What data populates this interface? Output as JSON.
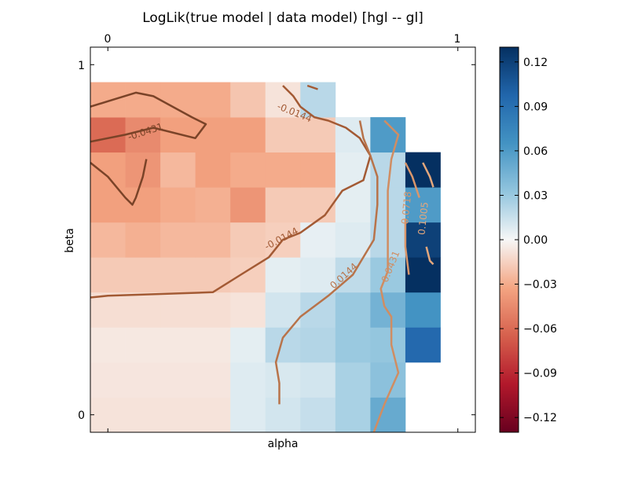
{
  "chart_data": {
    "type": "heatmap",
    "title": "LogLik(true model | data model) [hgl -- gl]",
    "xlabel": "alpha",
    "ylabel": "beta",
    "x_ticks": [
      "0",
      "1"
    ],
    "y_ticks": [
      "1",
      "0"
    ],
    "colorbar": {
      "ticks": [
        "0.12",
        "0.09",
        "0.06",
        "0.03",
        "0.00",
        "−0.03",
        "−0.06",
        "−0.09",
        "−0.12"
      ],
      "tick_values": [
        0.12,
        0.09,
        0.06,
        0.03,
        0.0,
        -0.03,
        -0.06,
        -0.09,
        -0.12
      ],
      "range": [
        -0.13,
        0.13
      ],
      "colormap": "RdBu"
    },
    "alpha_range": [
      -0.05,
      1.05
    ],
    "beta_range": [
      -0.05,
      1.05
    ],
    "grid_step": 0.1,
    "grid_start": 0.0,
    "rows": [
      [
        -0.008,
        -0.008,
        -0.008,
        -0.008,
        0.008,
        0.012,
        0.016,
        0.025,
        0.05,
        null
      ],
      [
        -0.007,
        -0.007,
        -0.007,
        -0.007,
        0.008,
        0.01,
        0.012,
        0.025,
        0.035,
        null
      ],
      [
        -0.006,
        -0.006,
        -0.006,
        -0.006,
        0.006,
        0.02,
        0.022,
        0.03,
        0.032,
        0.095
      ],
      [
        -0.01,
        -0.01,
        -0.01,
        -0.01,
        -0.008,
        0.012,
        0.02,
        0.03,
        0.045,
        0.065
      ],
      [
        -0.018,
        -0.018,
        -0.018,
        -0.018,
        -0.016,
        0.006,
        0.008,
        0.018,
        0.03,
        0.13
      ],
      [
        -0.025,
        -0.028,
        -0.025,
        -0.025,
        -0.018,
        -0.016,
        0.005,
        0.008,
        0.02,
        0.12
      ],
      [
        -0.035,
        -0.035,
        -0.03,
        -0.028,
        -0.04,
        -0.018,
        -0.018,
        0.006,
        0.02,
        0.06
      ],
      [
        -0.035,
        -0.04,
        -0.025,
        -0.035,
        -0.03,
        -0.03,
        -0.03,
        0.006,
        0.02,
        0.13
      ],
      [
        -0.06,
        -0.045,
        -0.035,
        -0.035,
        -0.035,
        -0.018,
        -0.018,
        0.008,
        0.06,
        null
      ],
      [
        -0.03,
        -0.03,
        -0.03,
        -0.03,
        -0.02,
        -0.008,
        0.02,
        null,
        null,
        null
      ]
    ],
    "contours": [
      {
        "level": -0.0431,
        "label": "-0.0431",
        "color": "#7a4328",
        "segments": [
          [
            [
              -0.05,
              0.88
            ],
            [
              0.08,
              0.92
            ],
            [
              0.13,
              0.91
            ],
            [
              0.24,
              0.85
            ],
            [
              0.28,
              0.83
            ],
            [
              0.25,
              0.79
            ],
            [
              0.13,
              0.82
            ],
            [
              0.05,
              0.8
            ],
            [
              -0.05,
              0.78
            ]
          ],
          [
            [
              -0.05,
              0.72
            ],
            [
              0.0,
              0.68
            ],
            [
              0.05,
              0.62
            ],
            [
              0.07,
              0.6
            ],
            [
              0.08,
              0.62
            ],
            [
              0.1,
              0.68
            ],
            [
              0.11,
              0.73
            ]
          ]
        ],
        "label_pos": [
          0.11,
          0.8
        ]
      },
      {
        "level": -0.0144,
        "label": "-0.0144",
        "color": "#a35a34",
        "segments": [
          [
            [
              0.5,
              0.94
            ],
            [
              0.53,
              0.91
            ],
            [
              0.55,
              0.88
            ],
            [
              0.59,
              0.85
            ],
            [
              0.63,
              0.84
            ],
            [
              0.68,
              0.82
            ],
            [
              0.72,
              0.79
            ],
            [
              0.75,
              0.74
            ],
            [
              0.73,
              0.67
            ],
            [
              0.67,
              0.64
            ],
            [
              0.62,
              0.57
            ],
            [
              0.55,
              0.52
            ],
            [
              0.5,
              0.5
            ],
            [
              0.46,
              0.45
            ],
            [
              0.38,
              0.4
            ],
            [
              0.3,
              0.35
            ],
            [
              0.0,
              0.34
            ],
            [
              -0.05,
              0.335
            ]
          ],
          [
            [
              0.57,
              0.94
            ],
            [
              0.6,
              0.93
            ]
          ]
        ],
        "label_pos": [
          0.5,
          0.495
        ],
        "label_pos2": [
          0.53,
          0.855
        ]
      },
      {
        "level": 0.0144,
        "label": "0.0144",
        "color": "#b8734a",
        "segments": [
          [
            [
              0.72,
              0.84
            ],
            [
              0.73,
              0.79
            ],
            [
              0.75,
              0.74
            ],
            [
              0.77,
              0.68
            ],
            [
              0.77,
              0.6
            ],
            [
              0.76,
              0.5
            ],
            [
              0.7,
              0.4
            ],
            [
              0.63,
              0.34
            ],
            [
              0.55,
              0.28
            ],
            [
              0.5,
              0.22
            ],
            [
              0.48,
              0.15
            ],
            [
              0.49,
              0.09
            ],
            [
              0.49,
              0.03
            ]
          ]
        ],
        "label_pos": [
          0.68,
          0.39
        ]
      },
      {
        "level": 0.0431,
        "label": "0.0431",
        "color": "#d08d62",
        "segments": [
          [
            [
              0.79,
              0.84
            ],
            [
              0.83,
              0.8
            ],
            [
              0.81,
              0.73
            ],
            [
              0.8,
              0.64
            ],
            [
              0.8,
              0.56
            ],
            [
              0.8,
              0.48
            ],
            [
              0.8,
              0.41
            ],
            [
              0.78,
              0.36
            ],
            [
              0.79,
              0.31
            ],
            [
              0.81,
              0.28
            ],
            [
              0.81,
              0.2
            ],
            [
              0.83,
              0.12
            ],
            [
              0.79,
              0.03
            ],
            [
              0.76,
              -0.05
            ]
          ]
        ],
        "label_pos": [
          0.816,
          0.42
        ]
      },
      {
        "level": 0.0718,
        "label": "0.0718",
        "color": "#d9966b",
        "segments": [
          [
            [
              0.85,
              0.72
            ],
            [
              0.87,
              0.68
            ],
            [
              0.89,
              0.62
            ]
          ],
          [
            [
              0.85,
              0.56
            ],
            [
              0.85,
              0.48
            ],
            [
              0.86,
              0.4
            ]
          ]
        ],
        "label_pos": [
          0.862,
          0.59
        ]
      },
      {
        "level": 0.1005,
        "label": "0.1005",
        "color": "#e3a77c",
        "segments": [
          [
            [
              0.9,
              0.72
            ],
            [
              0.92,
              0.68
            ],
            [
              0.93,
              0.65
            ]
          ],
          [
            [
              0.91,
              0.48
            ],
            [
              0.92,
              0.44
            ],
            [
              0.93,
              0.43
            ]
          ]
        ],
        "label_pos": [
          0.91,
          0.56
        ]
      }
    ]
  }
}
